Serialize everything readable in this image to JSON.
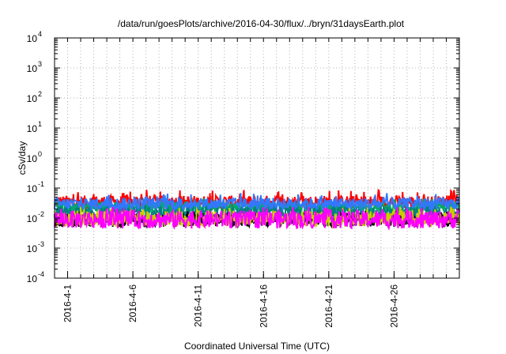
{
  "chart_data": {
    "type": "line",
    "title": "/data/run/goesPlots/archive/2016-04-30/flux/../bryn/31daysEarth.plot",
    "xlabel": "Coordinated Universal Time (UTC)",
    "ylabel": "cSv/day",
    "yscale": "log",
    "ylim": [
      0.0001,
      10000
    ],
    "xlim": [
      "2016-03-31",
      "2016-05-01"
    ],
    "grid": true,
    "x_ticks": [
      "2016-4-1",
      "2016-4-6",
      "2016-4-11",
      "2016-4-16",
      "2016-4-21",
      "2016-4-26"
    ],
    "y_ticks": [
      {
        "base": "10",
        "exp": "4",
        "value": 10000
      },
      {
        "base": "10",
        "exp": "3",
        "value": 1000
      },
      {
        "base": "10",
        "exp": "2",
        "value": 100
      },
      {
        "base": "10",
        "exp": "1",
        "value": 10
      },
      {
        "base": "10",
        "exp": "0",
        "value": 1
      },
      {
        "base": "10",
        "exp": "-1",
        "value": 0.1
      },
      {
        "base": "10",
        "exp": "-2",
        "value": 0.01
      },
      {
        "base": "10",
        "exp": "-3",
        "value": 0.001
      },
      {
        "base": "10",
        "exp": "-4",
        "value": 0.0001
      }
    ],
    "series": [
      {
        "color": "#ff0000",
        "base": 0.034,
        "spread": 0.22,
        "spike": 0.075
      },
      {
        "color": "#00aa66",
        "base": 0.023,
        "spread": 0.18,
        "spike": 0.04
      },
      {
        "color": "#008080",
        "base": 0.014,
        "spread": 0.25,
        "spike": 0.03
      },
      {
        "color": "#000000",
        "base": 0.0085,
        "spread": 0.22,
        "spike": 0.015
      },
      {
        "color": "#cccc00",
        "base": 0.0095,
        "spread": 0.25,
        "spike": 0.02
      },
      {
        "color": "#3377ff",
        "base": 0.03,
        "spread": 0.2,
        "spike": 0.06
      },
      {
        "color": "#ff00ff",
        "base": 0.009,
        "spread": 0.3,
        "spike": 0.02
      }
    ]
  }
}
